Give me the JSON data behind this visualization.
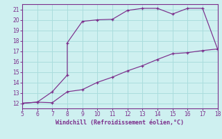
{
  "xlabel": "Windchill (Refroidissement éolien,°C)",
  "xlim": [
    5,
    18
  ],
  "ylim": [
    11.5,
    21.5
  ],
  "xticks": [
    5,
    6,
    7,
    8,
    9,
    10,
    11,
    12,
    13,
    14,
    15,
    16,
    17,
    18
  ],
  "yticks": [
    12,
    13,
    14,
    15,
    16,
    17,
    18,
    19,
    20,
    21
  ],
  "line_color": "#7B2D8B",
  "bg_color": "#cef0f0",
  "grid_color": "#aadddd",
  "upper_x": [
    5,
    6,
    7,
    8,
    8,
    9,
    10,
    11,
    12,
    13,
    14,
    15,
    16,
    17,
    18
  ],
  "upper_y": [
    12.0,
    12.1,
    13.1,
    14.7,
    17.8,
    19.85,
    20.0,
    20.05,
    20.9,
    21.1,
    21.1,
    20.55,
    21.1,
    21.1,
    17.2
  ],
  "lower_x": [
    5,
    6,
    7,
    8,
    9,
    10,
    11,
    12,
    13,
    14,
    15,
    16,
    17,
    18
  ],
  "lower_y": [
    12.0,
    12.1,
    12.05,
    13.1,
    13.3,
    14.0,
    14.5,
    15.1,
    15.6,
    16.2,
    16.75,
    16.85,
    17.05,
    17.2
  ]
}
